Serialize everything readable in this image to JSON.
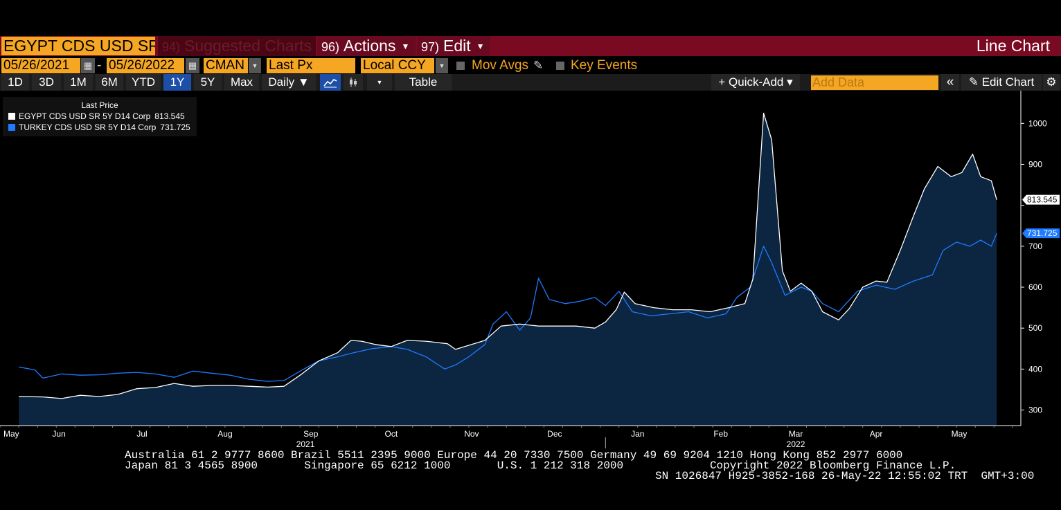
{
  "header": {
    "security": "EGYPT CDS USD SR",
    "suggested": {
      "num": "94)",
      "label": "Suggested Charts"
    },
    "actions": {
      "num": "96)",
      "label": "Actions"
    },
    "edit": {
      "num": "97)",
      "label": "Edit"
    },
    "chart_type": "Line Chart"
  },
  "controls": {
    "start_date": "05/26/2021",
    "end_date": "05/26/2022",
    "dash": "-",
    "source": "CMAN",
    "field": "Last Px",
    "currency": "Local CCY",
    "mov_avgs": "Mov Avgs",
    "key_events": "Key Events"
  },
  "toolbar": {
    "ranges": [
      "1D",
      "3D",
      "1M",
      "6M",
      "YTD",
      "1Y",
      "5Y",
      "Max"
    ],
    "selected_range": "1Y",
    "frequency": "Daily ▼",
    "table": "Table",
    "quick_add": "+ Quick-Add ▾",
    "add_data_placeholder": "Add Data",
    "edit_chart": "Edit Chart"
  },
  "legend": {
    "title": "Last Price",
    "items": [
      {
        "name": "EGYPT CDS USD SR 5Y D14 Corp",
        "value": "813.545"
      },
      {
        "name": "TURKEY CDS USD SR 5Y D14 Corp",
        "value": "731.725"
      }
    ]
  },
  "chart_data": {
    "type": "line",
    "series": [
      {
        "name": "EGYPT CDS USD SR 5Y D14 Corp",
        "color": "#ffffff",
        "fill": "#0c2540",
        "last": 813.545,
        "points": [
          [
            "2021-05-26",
            333
          ],
          [
            "2021-06-04",
            332
          ],
          [
            "2021-06-11",
            328
          ],
          [
            "2021-06-18",
            336
          ],
          [
            "2021-06-25",
            333
          ],
          [
            "2021-07-02",
            338
          ],
          [
            "2021-07-09",
            352
          ],
          [
            "2021-07-16",
            355
          ],
          [
            "2021-07-23",
            365
          ],
          [
            "2021-07-30",
            358
          ],
          [
            "2021-08-06",
            360
          ],
          [
            "2021-08-13",
            360
          ],
          [
            "2021-08-20",
            358
          ],
          [
            "2021-08-27",
            356
          ],
          [
            "2021-09-02",
            358
          ],
          [
            "2021-09-08",
            385
          ],
          [
            "2021-09-15",
            420
          ],
          [
            "2021-09-22",
            440
          ],
          [
            "2021-09-27",
            470
          ],
          [
            "2021-10-01",
            468
          ],
          [
            "2021-10-06",
            460
          ],
          [
            "2021-10-12",
            455
          ],
          [
            "2021-10-18",
            470
          ],
          [
            "2021-10-25",
            468
          ],
          [
            "2021-11-02",
            462
          ],
          [
            "2021-11-05",
            448
          ],
          [
            "2021-11-10",
            458
          ],
          [
            "2021-11-16",
            470
          ],
          [
            "2021-11-22",
            505
          ],
          [
            "2021-11-29",
            510
          ],
          [
            "2021-12-06",
            505
          ],
          [
            "2021-12-13",
            505
          ],
          [
            "2021-12-20",
            505
          ],
          [
            "2021-12-27",
            500
          ],
          [
            "2021-12-31",
            515
          ],
          [
            "2022-01-04",
            545
          ],
          [
            "2022-01-07",
            588
          ],
          [
            "2022-01-11",
            560
          ],
          [
            "2022-01-18",
            550
          ],
          [
            "2022-01-25",
            545
          ],
          [
            "2022-02-01",
            545
          ],
          [
            "2022-02-08",
            540
          ],
          [
            "2022-02-15",
            550
          ],
          [
            "2022-02-21",
            560
          ],
          [
            "2022-02-24",
            620
          ],
          [
            "2022-02-28",
            1025
          ],
          [
            "2022-03-03",
            960
          ],
          [
            "2022-03-07",
            640
          ],
          [
            "2022-03-10",
            590
          ],
          [
            "2022-03-14",
            610
          ],
          [
            "2022-03-18",
            590
          ],
          [
            "2022-03-22",
            540
          ],
          [
            "2022-03-28",
            520
          ],
          [
            "2022-04-01",
            548
          ],
          [
            "2022-04-06",
            600
          ],
          [
            "2022-04-11",
            615
          ],
          [
            "2022-04-15",
            612
          ],
          [
            "2022-04-20",
            690
          ],
          [
            "2022-04-25",
            775
          ],
          [
            "2022-04-29",
            840
          ],
          [
            "2022-05-04",
            895
          ],
          [
            "2022-05-09",
            870
          ],
          [
            "2022-05-13",
            880
          ],
          [
            "2022-05-17",
            925
          ],
          [
            "2022-05-20",
            870
          ],
          [
            "2022-05-24",
            860
          ],
          [
            "2022-05-26",
            813.545
          ]
        ]
      },
      {
        "name": "TURKEY CDS USD SR 5Y D14 Corp",
        "color": "#1f7bff",
        "last": 731.725,
        "points": [
          [
            "2021-05-26",
            405
          ],
          [
            "2021-06-01",
            398
          ],
          [
            "2021-06-04",
            378
          ],
          [
            "2021-06-11",
            388
          ],
          [
            "2021-06-18",
            385
          ],
          [
            "2021-06-25",
            386
          ],
          [
            "2021-07-02",
            390
          ],
          [
            "2021-07-09",
            392
          ],
          [
            "2021-07-16",
            388
          ],
          [
            "2021-07-23",
            380
          ],
          [
            "2021-07-30",
            395
          ],
          [
            "2021-08-06",
            390
          ],
          [
            "2021-08-13",
            385
          ],
          [
            "2021-08-20",
            375
          ],
          [
            "2021-08-27",
            370
          ],
          [
            "2021-09-02",
            372
          ],
          [
            "2021-09-08",
            395
          ],
          [
            "2021-09-15",
            420
          ],
          [
            "2021-09-22",
            430
          ],
          [
            "2021-09-28",
            440
          ],
          [
            "2021-10-05",
            450
          ],
          [
            "2021-10-12",
            455
          ],
          [
            "2021-10-18",
            448
          ],
          [
            "2021-10-25",
            430
          ],
          [
            "2021-11-01",
            400
          ],
          [
            "2021-11-05",
            410
          ],
          [
            "2021-11-10",
            430
          ],
          [
            "2021-11-16",
            460
          ],
          [
            "2021-11-19",
            510
          ],
          [
            "2021-11-24",
            540
          ],
          [
            "2021-11-29",
            495
          ],
          [
            "2021-12-03",
            525
          ],
          [
            "2021-12-06",
            622
          ],
          [
            "2021-12-10",
            570
          ],
          [
            "2021-12-16",
            560
          ],
          [
            "2021-12-21",
            565
          ],
          [
            "2021-12-27",
            575
          ],
          [
            "2021-12-31",
            555
          ],
          [
            "2022-01-05",
            590
          ],
          [
            "2022-01-10",
            540
          ],
          [
            "2022-01-17",
            530
          ],
          [
            "2022-01-24",
            535
          ],
          [
            "2022-01-31",
            540
          ],
          [
            "2022-02-07",
            525
          ],
          [
            "2022-02-14",
            535
          ],
          [
            "2022-02-18",
            575
          ],
          [
            "2022-02-23",
            600
          ],
          [
            "2022-02-28",
            700
          ],
          [
            "2022-03-03",
            660
          ],
          [
            "2022-03-08",
            580
          ],
          [
            "2022-03-14",
            600
          ],
          [
            "2022-03-18",
            590
          ],
          [
            "2022-03-22",
            560
          ],
          [
            "2022-03-28",
            540
          ],
          [
            "2022-04-04",
            590
          ],
          [
            "2022-04-11",
            605
          ],
          [
            "2022-04-18",
            595
          ],
          [
            "2022-04-25",
            615
          ],
          [
            "2022-05-02",
            630
          ],
          [
            "2022-05-06",
            690
          ],
          [
            "2022-05-11",
            710
          ],
          [
            "2022-05-16",
            700
          ],
          [
            "2022-05-20",
            715
          ],
          [
            "2022-05-24",
            700
          ],
          [
            "2022-05-26",
            731.725
          ]
        ]
      }
    ],
    "x_range": [
      "2021-05-19",
      "2022-06-04"
    ],
    "ylim": [
      262,
      1080
    ],
    "y_ticks": [
      300,
      400,
      500,
      600,
      700,
      800,
      900,
      1000
    ],
    "y_tick_labels": [
      "300",
      "400",
      "500",
      "600",
      "700",
      "",
      "900",
      "1000"
    ],
    "x_ticks": [
      {
        "date": "2021-05-19",
        "label": "May"
      },
      {
        "date": "2021-06-10",
        "label": "Jun"
      },
      {
        "date": "2021-07-11",
        "label": "Jul"
      },
      {
        "date": "2021-08-11",
        "label": "Aug"
      },
      {
        "date": "2021-09-12",
        "label": "Sep"
      },
      {
        "date": "2021-10-12",
        "label": "Oct"
      },
      {
        "date": "2021-11-11",
        "label": "Nov"
      },
      {
        "date": "2021-12-12",
        "label": "Dec"
      },
      {
        "date": "2022-01-12",
        "label": "Jan"
      },
      {
        "date": "2022-02-12",
        "label": "Feb"
      },
      {
        "date": "2022-03-12",
        "label": "Mar"
      },
      {
        "date": "2022-04-11",
        "label": "Apr"
      },
      {
        "date": "2022-05-12",
        "label": "May"
      }
    ],
    "year_labels": [
      {
        "date": "2021-09-10",
        "label": "2021"
      },
      {
        "date": "2022-03-12",
        "label": "2022"
      }
    ],
    "year_divider": "2021-12-31",
    "price_tags": [
      {
        "value": 813.545,
        "label": "813.545",
        "bg": "#ffffff",
        "fg": "#000000"
      },
      {
        "value": 731.725,
        "label": "731.725",
        "bg": "#1f7bff",
        "fg": "#ffffff"
      }
    ],
    "grid": false,
    "legend_position": "top-left"
  },
  "footer": {
    "line1": "Australia 61 2 9777 8600 Brazil 5511 2395 9000 Europe 44 20 7330 7500 Germany 49 69 9204 1210 Hong Kong 852 2977 6000",
    "line2": "Japan 81 3 4565 8900       Singapore 65 6212 1000       U.S. 1 212 318 2000             Copyright 2022 Bloomberg Finance L.P.",
    "line3": "SN 1026847 H925-3852-168 26-May-22 12:55:02 TRT  GMT+3:00"
  }
}
